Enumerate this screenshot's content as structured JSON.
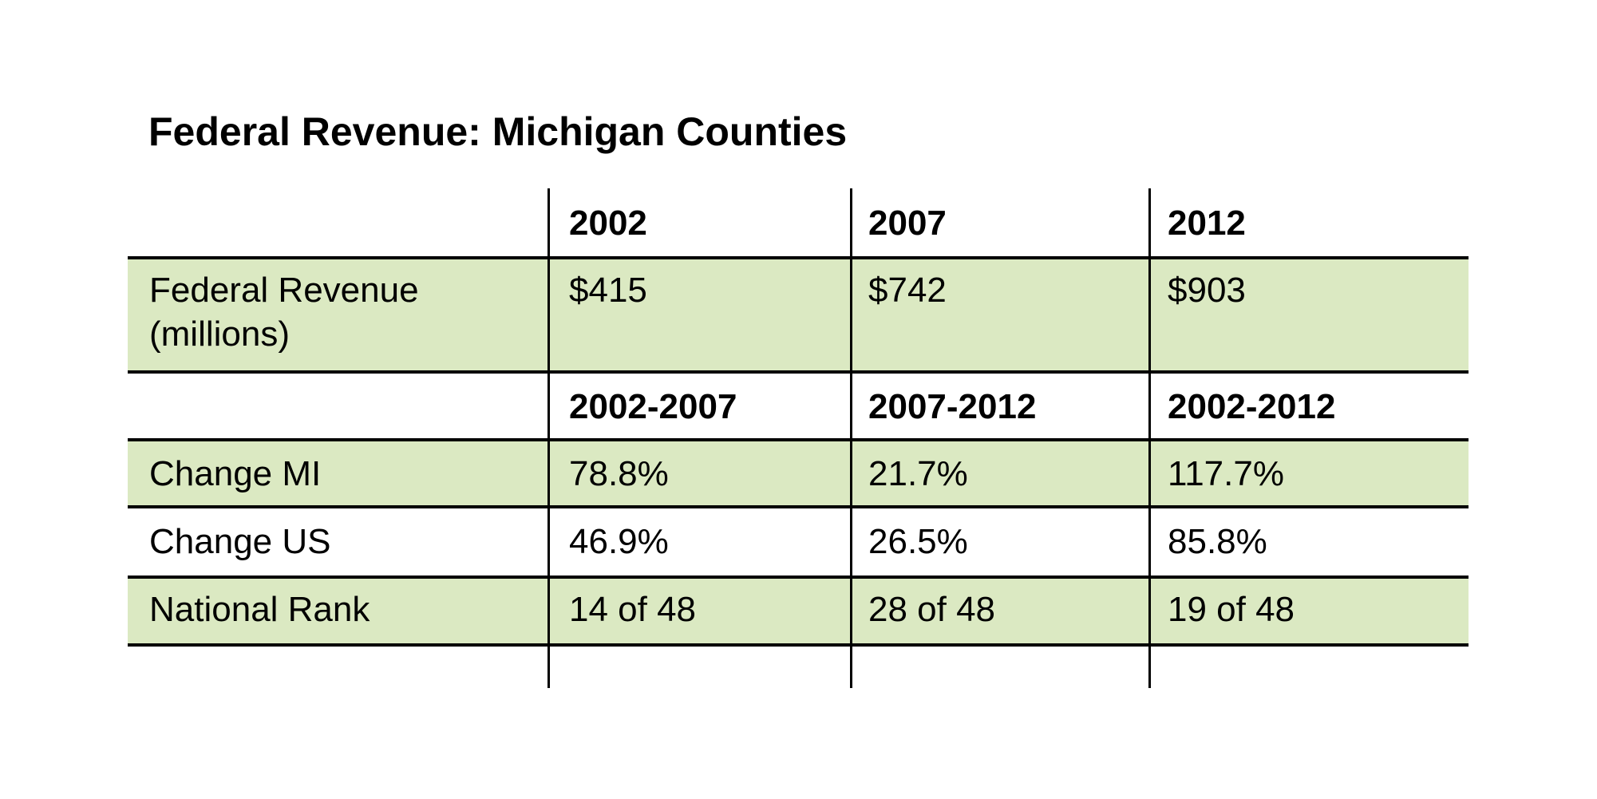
{
  "title": "Federal Revenue: Michigan Counties",
  "table": {
    "year_headers": [
      "2002",
      "2007",
      "2012"
    ],
    "revenue_row": {
      "label_line1": "Federal Revenue",
      "label_line2": "(millions)",
      "values": [
        "$415",
        "$742",
        "$903"
      ]
    },
    "period_headers": [
      "2002-2007",
      "2007-2012",
      "2002-2012"
    ],
    "rows": [
      {
        "label": "Change MI",
        "values": [
          "78.8%",
          "21.7%",
          "117.7%"
        ]
      },
      {
        "label": "Change US",
        "values": [
          "46.9%",
          "26.5%",
          "85.8%"
        ]
      },
      {
        "label": "National Rank",
        "values": [
          "14 of 48",
          "28 of 48",
          "19 of 48"
        ]
      }
    ]
  },
  "colors": {
    "row_highlight": "#dbe9c2",
    "rule": "#000000"
  }
}
